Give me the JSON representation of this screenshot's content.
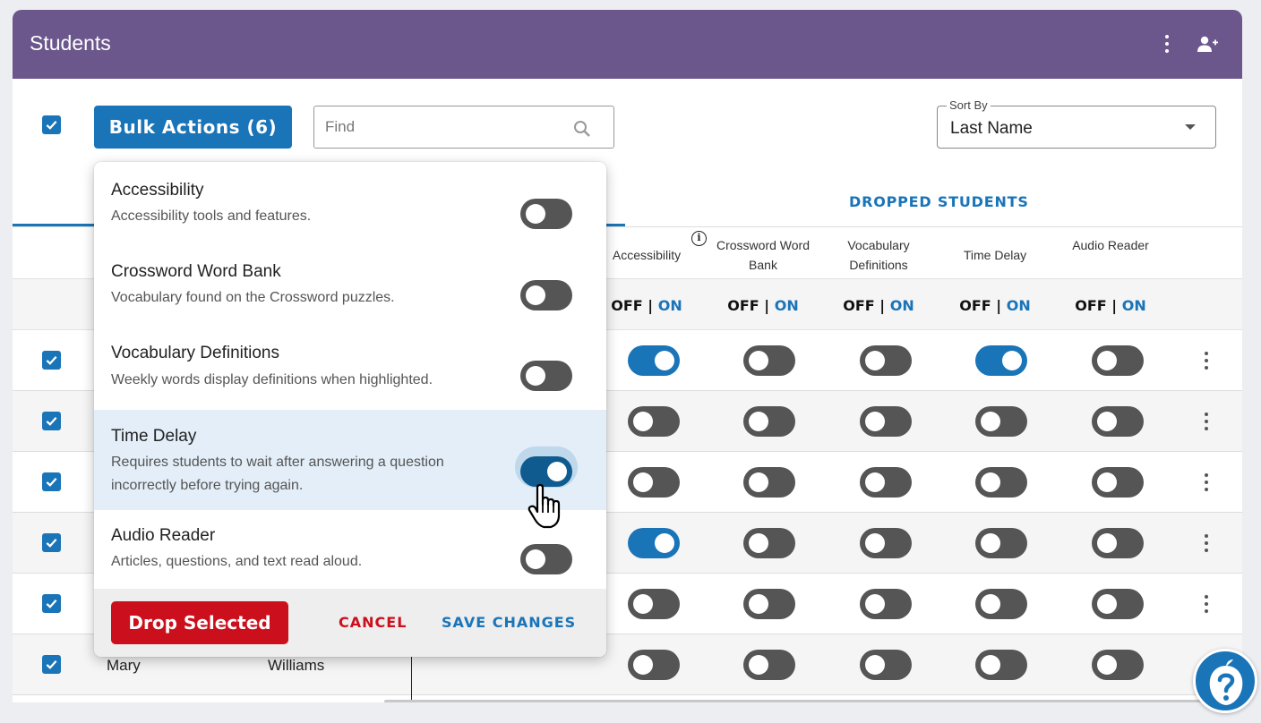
{
  "header": {
    "title": "Students"
  },
  "toolbar": {
    "bulk_actions_label": "Bulk Actions (6)",
    "find_placeholder": "Find",
    "sort_by_legend": "Sort By",
    "sort_by_value": "Last Name"
  },
  "tabs": {
    "dropped": "DROPPED STUDENTS"
  },
  "columns": [
    {
      "label": "Accessibility"
    },
    {
      "label": "Crossword Word Bank"
    },
    {
      "label": "Vocabulary Definitions"
    },
    {
      "label": "Time Delay"
    },
    {
      "label": "Audio Reader"
    }
  ],
  "offon": {
    "off": "OFF",
    "sep": " | ",
    "on": "ON"
  },
  "rows": [
    {
      "toggles": [
        true,
        false,
        false,
        true,
        false
      ]
    },
    {
      "toggles": [
        false,
        false,
        false,
        false,
        false
      ]
    },
    {
      "toggles": [
        false,
        false,
        false,
        false,
        false
      ]
    },
    {
      "toggles": [
        true,
        false,
        false,
        false,
        false
      ]
    },
    {
      "toggles": [
        false,
        false,
        false,
        false,
        false
      ]
    },
    {
      "first": "Mary",
      "last": "Williams",
      "toggles": [
        false,
        false,
        false,
        false,
        false
      ]
    }
  ],
  "bulk_panel": {
    "options": [
      {
        "title": "Accessibility",
        "description": "Accessibility tools and features.",
        "on": false
      },
      {
        "title": "Crossword Word Bank",
        "description": "Vocabulary found on the Crossword puzzles.",
        "on": false
      },
      {
        "title": "Vocabulary Definitions",
        "description": "Weekly words display definitions when highlighted.",
        "on": false
      },
      {
        "title": "Time Delay",
        "description": "Requires students to wait after answering a question incorrectly before trying again.",
        "on": true
      },
      {
        "title": "Audio Reader",
        "description": "Articles, questions, and text read aloud.",
        "on": false
      }
    ],
    "drop_label": "Drop Selected",
    "cancel_label": "CANCEL",
    "save_label": "SAVE CHANGES"
  },
  "colors": {
    "header": "#6b578c",
    "primary": "#1a74b8",
    "danger": "#cc0f1c"
  }
}
